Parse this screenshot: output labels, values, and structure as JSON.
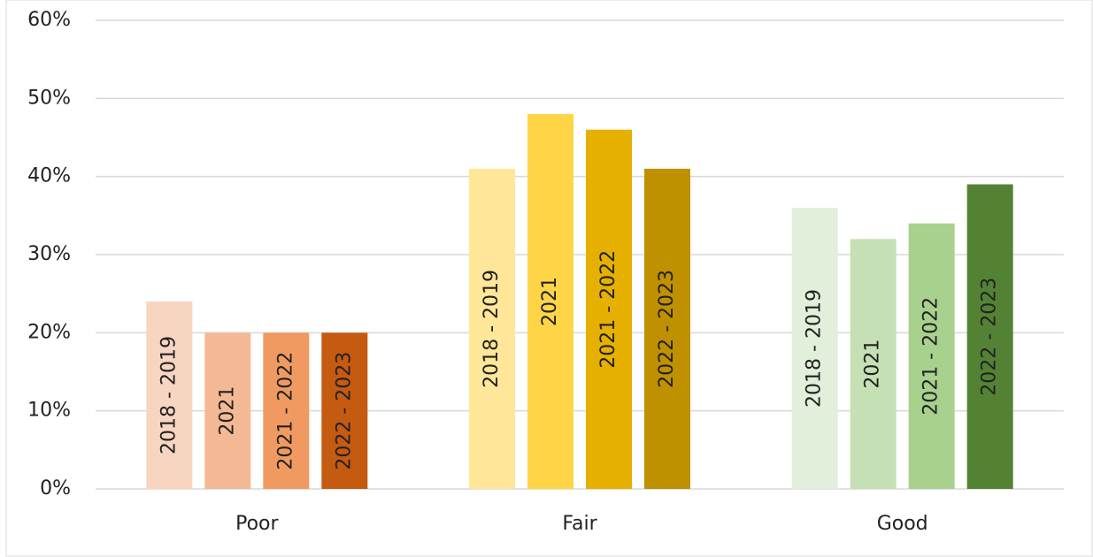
{
  "chart_data": {
    "type": "bar",
    "categories": [
      "Poor",
      "Fair",
      "Good"
    ],
    "series": [
      {
        "name": "2018 - 2019",
        "colors": [
          "#f8d5c1",
          "#ffe699",
          "#e2efda"
        ],
        "values": [
          24,
          41,
          36
        ]
      },
      {
        "name": "2021",
        "colors": [
          "#f4b994",
          "#ffd447",
          "#c5e0b4"
        ],
        "values": [
          20,
          48,
          32
        ]
      },
      {
        "name": "2021 - 2022",
        "colors": [
          "#f09a62",
          "#e5b000",
          "#a9d18e"
        ],
        "values": [
          20,
          46,
          34
        ]
      },
      {
        "name": "2022 - 2023",
        "colors": [
          "#c55a11",
          "#bf9000",
          "#548235"
        ],
        "values": [
          20,
          41,
          39
        ]
      }
    ],
    "ylim": [
      0,
      60
    ],
    "yticks": [
      {
        "value": 0,
        "label": "0%"
      },
      {
        "value": 10,
        "label": "10%"
      },
      {
        "value": 20,
        "label": "20%"
      },
      {
        "value": 30,
        "label": "30%"
      },
      {
        "value": 40,
        "label": "40%"
      },
      {
        "value": 50,
        "label": "50%"
      },
      {
        "value": 60,
        "label": "60%"
      }
    ],
    "grid": true
  }
}
